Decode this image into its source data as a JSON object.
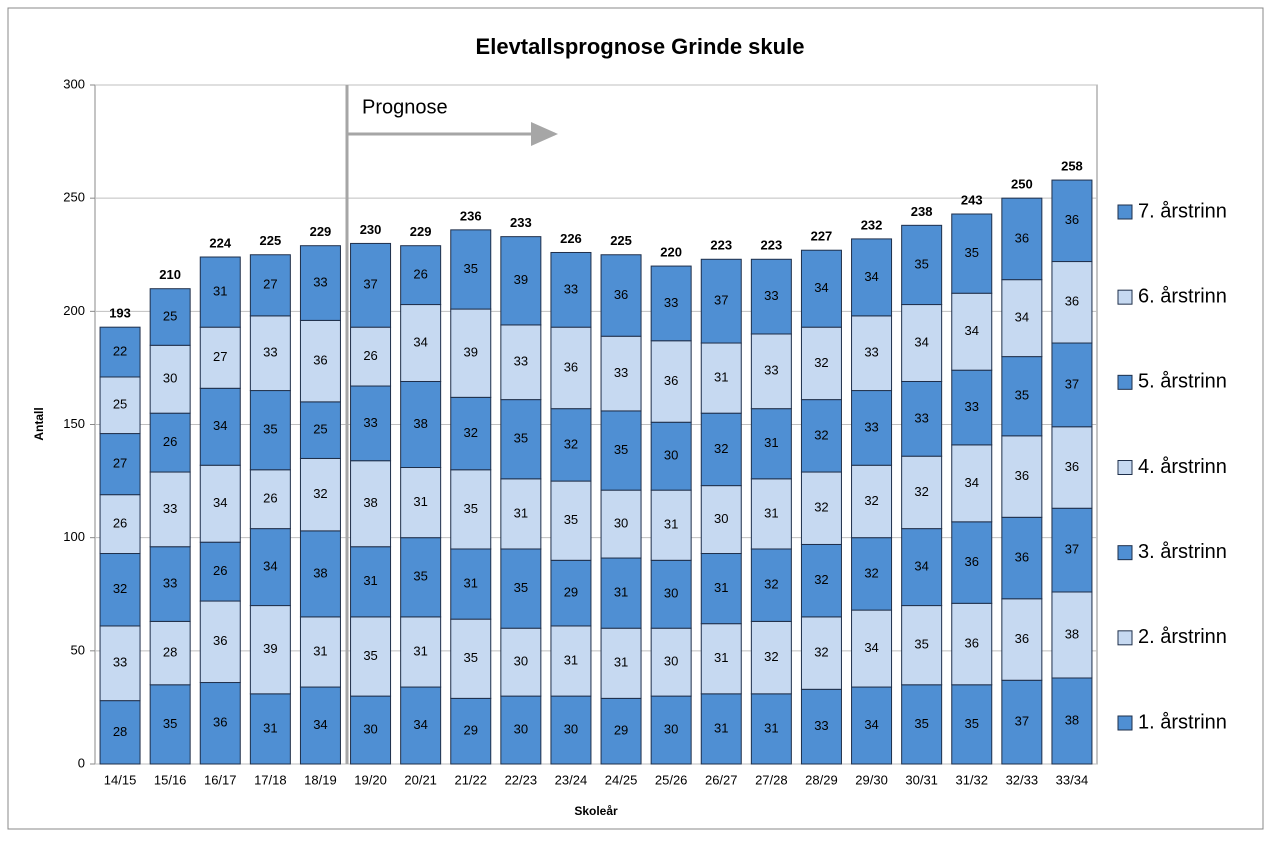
{
  "chart_data": {
    "type": "stacked_bar",
    "title": "Elevtallsprognose Grinde skule",
    "xlabel": "Skoleår",
    "ylabel": "Antall",
    "annotation": "Prognose",
    "categories": [
      "14/15",
      "15/16",
      "16/17",
      "17/18",
      "18/19",
      "19/20",
      "20/21",
      "21/22",
      "22/23",
      "23/24",
      "24/25",
      "25/26",
      "26/27",
      "27/28",
      "28/29",
      "29/30",
      "30/31",
      "31/32",
      "32/33",
      "33/34"
    ],
    "series": [
      {
        "name": "1. årstrinn",
        "color": "#4f8fd3",
        "values": [
          28,
          35,
          36,
          31,
          34,
          30,
          34,
          29,
          30,
          30,
          29,
          30,
          31,
          31,
          33,
          34,
          35,
          35,
          37,
          38
        ]
      },
      {
        "name": "2. årstrinn",
        "color": "#c6d9f1",
        "values": [
          33,
          28,
          36,
          39,
          31,
          35,
          31,
          35,
          30,
          31,
          31,
          30,
          31,
          32,
          32,
          34,
          35,
          36,
          36,
          38
        ]
      },
      {
        "name": "3. årstrinn",
        "color": "#4f8fd3",
        "values": [
          32,
          33,
          26,
          34,
          38,
          31,
          35,
          31,
          35,
          29,
          31,
          30,
          31,
          32,
          32,
          32,
          34,
          36,
          36,
          37
        ]
      },
      {
        "name": "4. årstrinn",
        "color": "#c6d9f1",
        "values": [
          26,
          33,
          34,
          26,
          32,
          38,
          31,
          35,
          31,
          35,
          30,
          31,
          30,
          31,
          32,
          32,
          32,
          34,
          36,
          36
        ]
      },
      {
        "name": "5. årstrinn",
        "color": "#4f8fd3",
        "values": [
          27,
          26,
          34,
          35,
          25,
          33,
          38,
          32,
          35,
          32,
          35,
          30,
          32,
          31,
          32,
          33,
          33,
          33,
          35,
          37
        ]
      },
      {
        "name": "6. årstrinn",
        "color": "#c6d9f1",
        "values": [
          25,
          30,
          27,
          33,
          36,
          26,
          34,
          39,
          33,
          36,
          33,
          36,
          31,
          33,
          32,
          33,
          34,
          34,
          34,
          36
        ]
      },
      {
        "name": "7. årstrinn",
        "color": "#4f8fd3",
        "values": [
          22,
          25,
          31,
          27,
          33,
          37,
          26,
          35,
          39,
          33,
          36,
          33,
          37,
          33,
          34,
          34,
          35,
          35,
          36,
          36
        ]
      }
    ],
    "totals": [
      193,
      210,
      224,
      225,
      229,
      230,
      229,
      236,
      233,
      226,
      225,
      220,
      223,
      223,
      227,
      232,
      238,
      243,
      250,
      258
    ],
    "ylim": [
      0,
      300
    ],
    "yticks": [
      0,
      50,
      100,
      150,
      200,
      250,
      300
    ],
    "grid": true,
    "legend": "right"
  }
}
